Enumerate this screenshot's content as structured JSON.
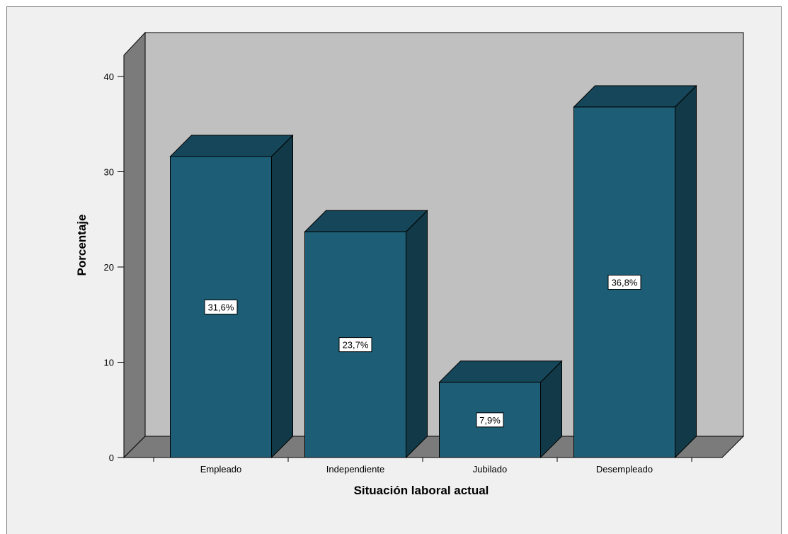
{
  "chart_data": {
    "type": "bar",
    "style": "3d",
    "categories": [
      "Empleado",
      "Independiente",
      "Jubilado",
      "Desempleado"
    ],
    "values": [
      31.6,
      23.7,
      7.9,
      36.8
    ],
    "data_labels": [
      "31,6%",
      "23,7%",
      "7,9%",
      "36,8%"
    ],
    "xlabel": "Situación laboral actual",
    "ylabel": "Porcentaje",
    "ylim": [
      0,
      40
    ],
    "yticks": [
      "0",
      "10",
      "20",
      "30",
      "40"
    ],
    "grid": false,
    "legend": "none"
  },
  "colors": {
    "bar_front": "#1d5e76",
    "bar_top": "#164659",
    "bar_side": "#123947",
    "back_wall": "#c0c0c0",
    "side_wall": "#7b7b7b",
    "floor": "#7b7b7b",
    "chart_background": "#f0f0f0"
  }
}
